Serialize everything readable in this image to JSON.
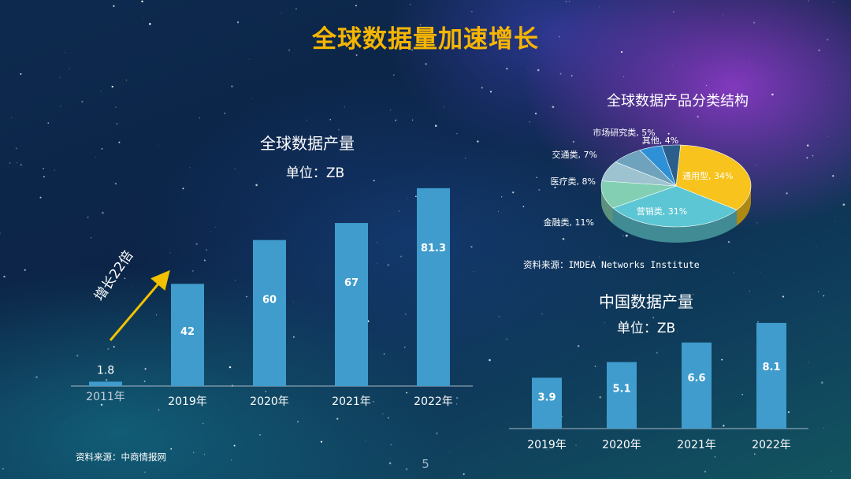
{
  "title": "全球数据量加速增长",
  "global_chart": {
    "title": "全球数据产量",
    "unit": "单位：ZB",
    "annotation": "增长22倍",
    "source": "资料来源：中商情报网"
  },
  "pie_chart_info": {
    "title": "全球数据产品分类结构",
    "source": "资料来源：IMDEA Networks Institute"
  },
  "china_chart": {
    "title": "中国数据产量",
    "unit": "单位：ZB"
  },
  "page_number": "5",
  "colors": {
    "title": "#f7b500",
    "bar": "#3f9ccc",
    "annotation_arrow": "#f2c200"
  },
  "chart_data": [
    {
      "type": "bar",
      "title": "全球数据产量",
      "categories": [
        "2011年",
        "2019年",
        "2020年",
        "2021年",
        "2022年"
      ],
      "values": [
        1.8,
        42,
        60,
        67,
        81.3
      ],
      "labels": [
        "1.8",
        "42",
        "60",
        "67",
        "81.3"
      ],
      "ylim": [
        0,
        90
      ]
    },
    {
      "type": "pie",
      "title": "全球数据产品分类结构",
      "slices": [
        {
          "label": "通用型",
          "value": 34,
          "text": "通用型, 34%",
          "color": "#f7c31c"
        },
        {
          "label": "营销类",
          "value": 31,
          "text": "营销类, 31%",
          "color": "#5cc6d4"
        },
        {
          "label": "金融类",
          "value": 11,
          "text": "金融类, 11%",
          "color": "#82cfb4"
        },
        {
          "label": "医疗类",
          "value": 8,
          "text": "医疗类, 8%",
          "color": "#9cc3cf"
        },
        {
          "label": "交通类",
          "value": 7,
          "text": "交通类, 7%",
          "color": "#6fa3bd"
        },
        {
          "label": "市场研究类",
          "value": 5,
          "text": "市场研究类, 5%",
          "color": "#2e90d6"
        },
        {
          "label": "其他",
          "value": 4,
          "text": "其他, 4%",
          "color": "#2a5f8c"
        }
      ]
    },
    {
      "type": "bar",
      "title": "中国数据产量",
      "categories": [
        "2019年",
        "2020年",
        "2021年",
        "2022年"
      ],
      "values": [
        3.9,
        5.1,
        6.6,
        8.1
      ],
      "labels": [
        "3.9",
        "5.1",
        "6.6",
        "8.1"
      ],
      "ylim": [
        0,
        9
      ]
    }
  ]
}
